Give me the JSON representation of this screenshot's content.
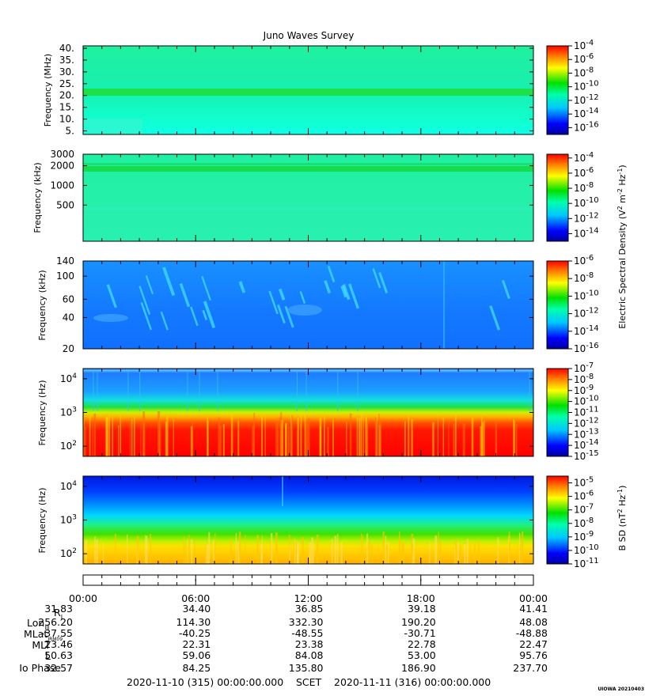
{
  "chart_data": {
    "type": "heatmap",
    "title": "Juno Waves Survey",
    "panels": [
      {
        "ylabel": "Frequency (MHz)",
        "yticks": [
          "40.",
          "35.",
          "30.",
          "25.",
          "20.",
          "15.",
          "10.",
          "5."
        ],
        "ytick_values": [
          40,
          35,
          30,
          25,
          20,
          15,
          10,
          5
        ],
        "ylim": [
          3.5,
          41
        ],
        "yscale": "linear",
        "colorbar": {
          "ticks": [
            "10-4",
            "10-6",
            "10-8",
            "10-10",
            "10-12",
            "10-14",
            "10-16"
          ],
          "exponents": [
            -4,
            -6,
            -8,
            -10,
            -12,
            -14,
            -16
          ],
          "range": [
            -17,
            -4
          ]
        },
        "dominant": "cyan-green background with a strong green band near 21 MHz"
      },
      {
        "ylabel": "Frequency (kHz)",
        "yticks": [
          "3000",
          "2000",
          "1000",
          "500"
        ],
        "ytick_values": [
          3000,
          2000,
          1000,
          500
        ],
        "ylim": [
          140,
          3000
        ],
        "yscale": "log",
        "colorbar": {
          "ticks": [
            "10-4",
            "10-6",
            "10-8",
            "10-10",
            "10-12",
            "10-14"
          ],
          "exponents": [
            -4,
            -6,
            -8,
            -10,
            -12,
            -14
          ],
          "range": [
            -15,
            -3.5
          ]
        },
        "dominant": "cyan-green background with green bands near 1800 kHz and 2200 kHz"
      },
      {
        "ylabel": "Frequency (kHz)",
        "yticks": [
          "140",
          "100",
          "60",
          "40",
          "20"
        ],
        "ytick_values": [
          140,
          100,
          60,
          40,
          20
        ],
        "ylim": [
          20,
          140
        ],
        "yscale": "log",
        "colorbar": {
          "ticks": [
            "10-6",
            "10-8",
            "10-10",
            "10-12",
            "10-14",
            "10-16"
          ],
          "exponents": [
            -6,
            -8,
            -10,
            -12,
            -14,
            -16
          ],
          "range": [
            -16,
            -6
          ]
        },
        "dominant": "blue background with light-blue drifting bursts"
      },
      {
        "ylabel": "Frequency (Hz)",
        "yticks": [
          "10^4",
          "10^3",
          "10^2"
        ],
        "ytick_values": [
          10000,
          1000,
          100
        ],
        "ylim": [
          50,
          20000
        ],
        "yscale": "log",
        "colorbar": {
          "ticks": [
            "10-7",
            "10-8",
            "10-9",
            "10-10",
            "10-11",
            "10-12",
            "10-13",
            "10-14",
            "10-15"
          ],
          "exponents": [
            -7,
            -8,
            -9,
            -10,
            -11,
            -12,
            -13,
            -14,
            -15
          ],
          "range": [
            -15,
            -7
          ]
        },
        "dominant": "red/yellow below ~700 Hz, green transition ~1000 Hz, blue above"
      },
      {
        "ylabel": "Frequency (Hz)",
        "yticks": [
          "10^4",
          "10^3",
          "10^2"
        ],
        "ytick_values": [
          10000,
          1000,
          100
        ],
        "ylim": [
          50,
          20000
        ],
        "yscale": "log",
        "colorbar": {
          "ticks": [
            "10-5",
            "10-6",
            "10-7",
            "10-8",
            "10-9",
            "10-10",
            "10-11"
          ],
          "exponents": [
            -5,
            -6,
            -7,
            -8,
            -9,
            -10,
            -11
          ],
          "range": [
            -11,
            -4.5
          ]
        },
        "dominant": "dark blue at top, cyan/green mid, yellow/orange below ~200 Hz"
      }
    ],
    "colorbar_labels": [
      "Electric Spectral Density (V2 m-2 Hz-1)",
      "B SD (nT2 Hz-1)"
    ],
    "x_ticks": [
      "00:00",
      "06:00",
      "12:00",
      "18:00",
      "00:00"
    ],
    "ephemeris": [
      {
        "label": "RJ",
        "values": [
          "31.83",
          "34.40",
          "36.85",
          "39.18",
          "41.41"
        ]
      },
      {
        "label": "LonIII",
        "values": [
          "256.20",
          "114.30",
          "332.30",
          "190.20",
          "48.08"
        ]
      },
      {
        "label": "MLatJRM09",
        "values": [
          "-37.55",
          "-40.25",
          "-48.55",
          "-30.71",
          "-48.88"
        ]
      },
      {
        "label": "MLT",
        "values": [
          "23.46",
          "22.31",
          "23.38",
          "22.78",
          "22.47"
        ]
      },
      {
        "label": "L",
        "values": [
          "50.63",
          "59.06",
          "84.08",
          "53.00",
          "95.76"
        ]
      },
      {
        "label": "Io Phase",
        "values": [
          "32.57",
          "84.25",
          "135.80",
          "186.90",
          "237.70"
        ]
      }
    ],
    "time_range": {
      "start": "2020-11-10 (315) 00:00:00.000",
      "mid": "SCET",
      "end": "2020-11-11 (316) 00:00:00.000"
    },
    "credit": "UIOWA 20210403"
  },
  "labels": {
    "ylab_mhz": "Frequency (MHz)",
    "ylab_khz": "Frequency (kHz)",
    "ylab_hz": "Frequency (Hz)",
    "esd_label": "Electric Spectral Density (V",
    "esd_label2": " m",
    "esd_label3": " Hz",
    "bsd_label": "B SD (nT",
    "bsd_label2": " Hz",
    "rj_main": "R",
    "rj_sub": "J",
    "lon_main": "Lon",
    "lon_sub": "III",
    "mlat_main": "MLat",
    "mlat_sub": "JRM09",
    "mlt": "MLT",
    "l": "L",
    "io": "Io Phase"
  }
}
